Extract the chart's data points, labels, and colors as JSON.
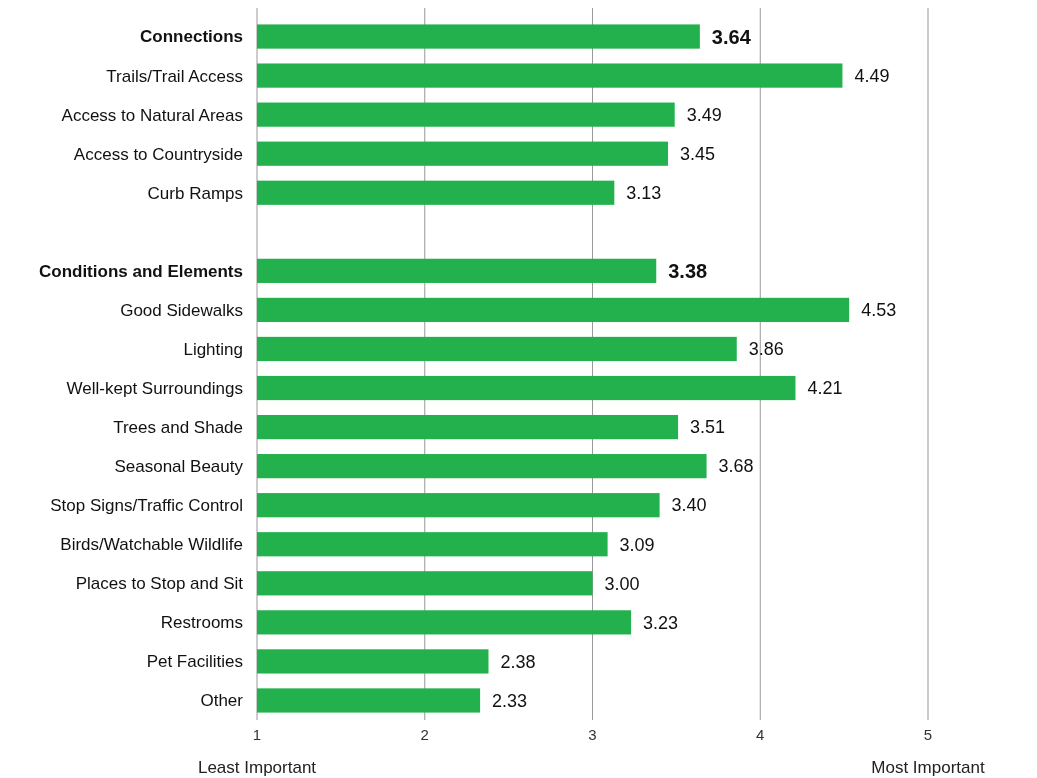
{
  "chart_data": {
    "type": "bar",
    "orientation": "horizontal",
    "categories": [
      "Connections",
      "Trails/Trail Access",
      "Access to Natural Areas",
      "Access to Countryside",
      "Curb Ramps",
      null,
      "Conditions and Elements",
      "Good Sidewalks",
      "Lighting",
      "Well-kept Surroundings",
      "Trees and Shade",
      "Seasonal Beauty",
      "Stop Signs/Traffic Control",
      "Birds/Watchable Wildlife",
      "Places to Stop and Sit",
      "Restrooms",
      "Pet Facilities",
      "Other"
    ],
    "values": [
      3.64,
      4.49,
      3.49,
      3.45,
      3.13,
      null,
      3.38,
      4.53,
      3.86,
      4.21,
      3.51,
      3.68,
      3.4,
      3.09,
      3.0,
      3.23,
      2.38,
      2.33
    ],
    "value_labels": [
      "3.64",
      "4.49",
      "3.49",
      "3.45",
      "3.13",
      null,
      "3.38",
      "4.53",
      "3.86",
      "4.21",
      "3.51",
      "3.68",
      "3.40",
      "3.09",
      "3.00",
      "3.23",
      "2.38",
      "2.33"
    ],
    "color": "#23b14d",
    "xlim": [
      1,
      5
    ],
    "xticks": [
      1,
      2,
      3,
      4,
      5
    ],
    "grid": "x",
    "annotations": [
      "Least Important",
      "Most Important"
    ]
  }
}
